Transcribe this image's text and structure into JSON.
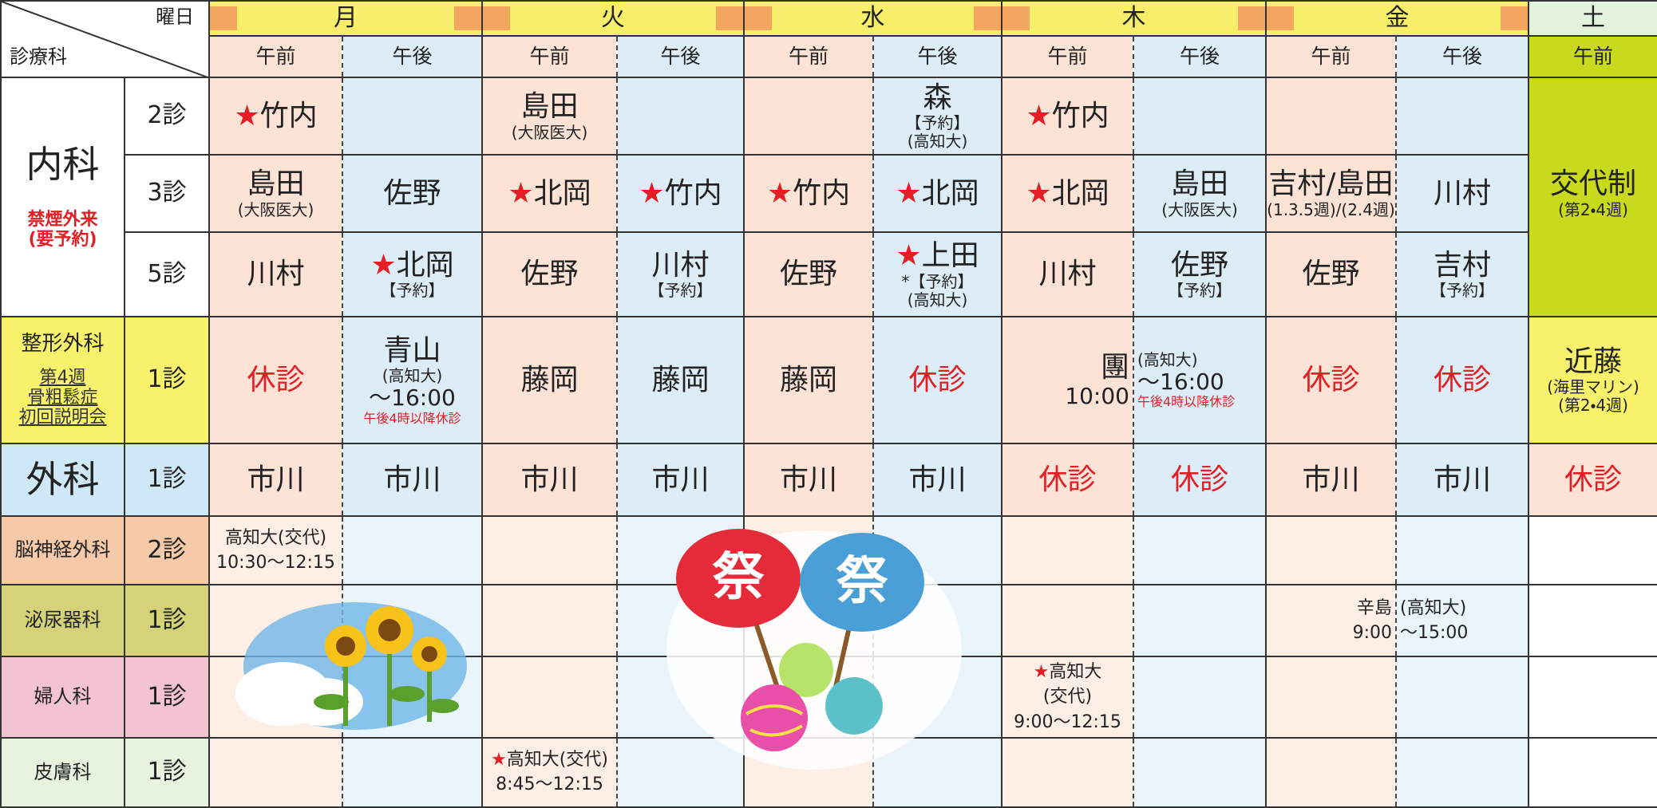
{
  "header": {
    "corner_top": "曜日",
    "corner_bottom": "診療科",
    "days": [
      "月",
      "火",
      "水",
      "木",
      "金",
      "土"
    ],
    "periods": [
      "午前",
      "午後",
      "午前",
      "午後",
      "午前",
      "午後",
      "午前",
      "午後",
      "午前",
      "午後",
      "午前"
    ]
  },
  "departments": [
    {
      "name": "内科",
      "note": [
        "禁煙外来",
        "(要予約)"
      ],
      "rooms": [
        {
          "room": "2診",
          "cells": [
            [
              "★竹内"
            ],
            null,
            [
              "島田",
              "(大阪医大)"
            ],
            null,
            null,
            [
              "森",
              "【予約】",
              "(高知大)"
            ],
            [
              "★竹内"
            ],
            null,
            null,
            null,
            null
          ]
        },
        {
          "room": "3診",
          "cells": [
            [
              "島田",
              "(大阪医大)"
            ],
            [
              "佐野"
            ],
            [
              "★北岡"
            ],
            [
              "★竹内"
            ],
            [
              "★竹内"
            ],
            [
              "★北岡"
            ],
            [
              "★北岡"
            ],
            [
              "島田",
              "(大阪医大)"
            ],
            [
              "吉村/島田",
              "(1.3.5週)/(2.4週)"
            ],
            [
              "川村"
            ],
            [
              "交代制",
              "(第2・4週)"
            ]
          ]
        },
        {
          "room": "5診",
          "cells": [
            [
              "川村"
            ],
            [
              "★北岡",
              "【予約】"
            ],
            [
              "佐野"
            ],
            [
              "川村",
              "【予約】"
            ],
            [
              "佐野"
            ],
            [
              "★上田",
              "*【予約】",
              "(高知大)"
            ],
            [
              "川村"
            ],
            [
              "佐野",
              "【予約】"
            ],
            [
              "佐野"
            ],
            [
              "吉村",
              "【予約】"
            ],
            null
          ]
        }
      ]
    },
    {
      "name": "整形外科",
      "note": [
        "第4週",
        "骨粗鬆症",
        "初回説明会"
      ],
      "rooms": [
        {
          "room": "1診",
          "cells": [
            [
              "休診"
            ],
            [
              "青山",
              "(高知大)",
              "〜16:00",
              "午後4時以降休診"
            ],
            [
              "藤岡"
            ],
            [
              "藤岡"
            ],
            [
              "藤岡"
            ],
            [
              "休診"
            ],
            [
              "團",
              "10:00"
            ],
            [
              "(高知大)",
              "〜16:00",
              "午後4時以降休診"
            ],
            [
              "休診"
            ],
            [
              "休診"
            ],
            [
              "近藤",
              "(海里マリン)",
              "(第2・4週)"
            ]
          ]
        }
      ]
    },
    {
      "name": "外科",
      "rooms": [
        {
          "room": "1診",
          "cells": [
            [
              "市川"
            ],
            [
              "市川"
            ],
            [
              "市川"
            ],
            [
              "市川"
            ],
            [
              "市川"
            ],
            [
              "市川"
            ],
            [
              "休診"
            ],
            [
              "休診"
            ],
            [
              "市川"
            ],
            [
              "市川"
            ],
            [
              "休診"
            ]
          ]
        }
      ]
    },
    {
      "name": "脳神経外科",
      "rooms": [
        {
          "room": "2診",
          "cells": [
            [
              "高知大(交代)",
              "10:30〜12:15"
            ],
            null,
            null,
            null,
            null,
            null,
            null,
            null,
            null,
            null,
            null
          ]
        }
      ]
    },
    {
      "name": "泌尿器科",
      "rooms": [
        {
          "room": "1診",
          "cells": [
            null,
            null,
            null,
            null,
            null,
            null,
            null,
            null,
            [
              "辛島",
              "9:00"
            ],
            [
              "(高知大)",
              "〜15:00"
            ],
            null
          ]
        }
      ]
    },
    {
      "name": "婦人科",
      "rooms": [
        {
          "room": "1診",
          "cells": [
            null,
            null,
            null,
            null,
            null,
            null,
            [
              "★高知大",
              "(交代)",
              "9:00〜12:15"
            ],
            null,
            null,
            null,
            null
          ]
        }
      ]
    },
    {
      "name": "皮膚科",
      "rooms": [
        {
          "room": "1診",
          "cells": [
            null,
            null,
            [
              "★高知大(交代)",
              "8:45〜12:15"
            ],
            null,
            null,
            null,
            null,
            null,
            null,
            null,
            null
          ]
        }
      ]
    }
  ],
  "decoration_text": [
    "祭",
    "祭"
  ]
}
